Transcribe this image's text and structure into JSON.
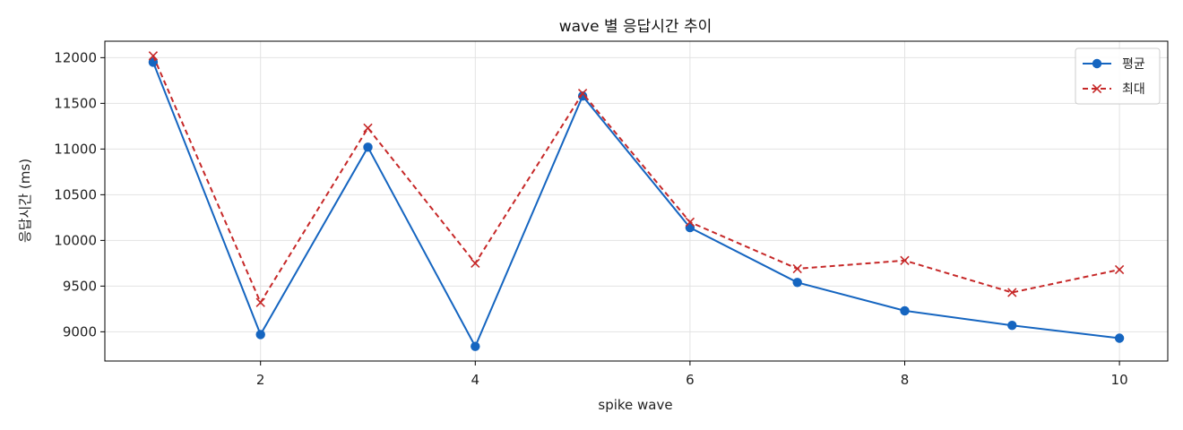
{
  "chart_data": {
    "type": "line",
    "title": "wave 별 응답시간 추이",
    "xlabel": "spike wave",
    "ylabel": "응답시간 (ms)",
    "x": [
      1,
      2,
      3,
      4,
      5,
      6,
      7,
      8,
      9,
      10
    ],
    "xticks": [
      2,
      4,
      6,
      8,
      10
    ],
    "yticks": [
      9000,
      9500,
      10000,
      10500,
      11000,
      11500,
      12000
    ],
    "xlim": [
      0.55,
      10.45
    ],
    "ylim": [
      8680,
      12180
    ],
    "grid": true,
    "legend_position": "top-right",
    "series": [
      {
        "name": "평균",
        "color": "#1565c0",
        "line_style": "solid",
        "marker": "circle",
        "values": [
          11950,
          8970,
          11020,
          8840,
          11580,
          10140,
          9540,
          9230,
          9070,
          8930
        ]
      },
      {
        "name": "최대",
        "color": "#c62828",
        "line_style": "dashed",
        "marker": "x",
        "values": [
          12020,
          9320,
          11230,
          9750,
          11610,
          10200,
          9690,
          9780,
          9430,
          9680
        ]
      }
    ]
  }
}
